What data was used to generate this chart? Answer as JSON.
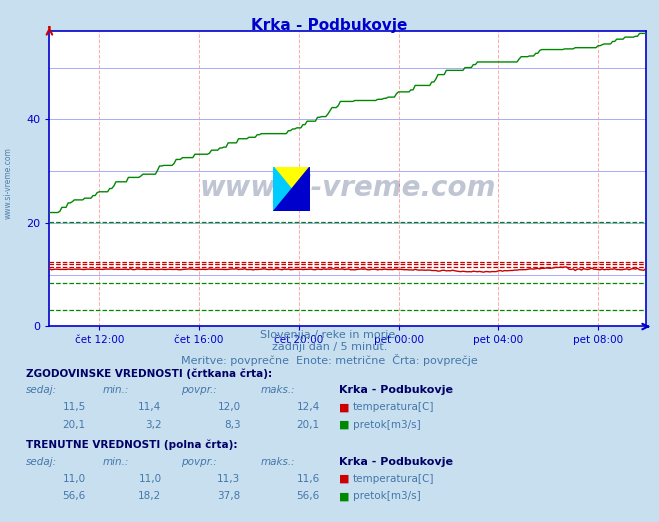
{
  "title": "Krka - Podbukovje",
  "title_color": "#0000cc",
  "fig_bg_color": "#c8dff0",
  "plot_bg_color": "#ffffff",
  "outer_bg_color": "#d8eaf8",
  "axis_color": "#0000cc",
  "yticks": [
    0,
    20,
    40
  ],
  "ylim": [
    0,
    57
  ],
  "xlabel_times": [
    "čet 12:00",
    "čet 16:00",
    "čet 20:00",
    "pet 00:00",
    "pet 04:00",
    "pet 08:00"
  ],
  "n_points": 288,
  "temp_solid_val": 11.0,
  "temp_dashed_avg": 12.0,
  "temp_dashed_min": 11.4,
  "temp_dashed_max": 12.4,
  "flow_solid_start": 20.1,
  "flow_solid_end": 56.6,
  "flow_dashed_avg": 8.3,
  "flow_dashed_min": 3.2,
  "flow_dashed_max": 20.1,
  "subtitle1": "Slovenija / reke in morje.",
  "subtitle2": "zadnji dan / 5 minut.",
  "subtitle3": "Meritve: povprečne  Enote: metrične  Črta: povprečje",
  "hist_label": "ZGODOVINSKE VREDNOSTI (črtkana črta):",
  "curr_label": "TRENUTNE VREDNOSTI (polna črta):",
  "col_headers": [
    "sedaj:",
    "min.:",
    "povpr.:",
    "maks.:"
  ],
  "station_name": "Krka - Podbukovje",
  "hist_temp": [
    11.5,
    11.4,
    12.0,
    12.4
  ],
  "hist_flow": [
    20.1,
    3.2,
    8.3,
    20.1
  ],
  "curr_temp": [
    11.0,
    11.0,
    11.3,
    11.6
  ],
  "curr_flow": [
    56.6,
    18.2,
    37.8,
    56.6
  ],
  "temp_label": "temperatura[C]",
  "flow_label": "pretok[m3/s]",
  "red_color": "#cc0000",
  "green_color": "#008800",
  "text_color": "#4477aa",
  "label_color": "#4477aa",
  "bold_label_color": "#000066",
  "grid_color_h": "#aaaaff",
  "grid_color_v": "#ffaaaa",
  "xtick_positions": [
    24,
    72,
    120,
    168,
    216,
    264
  ]
}
